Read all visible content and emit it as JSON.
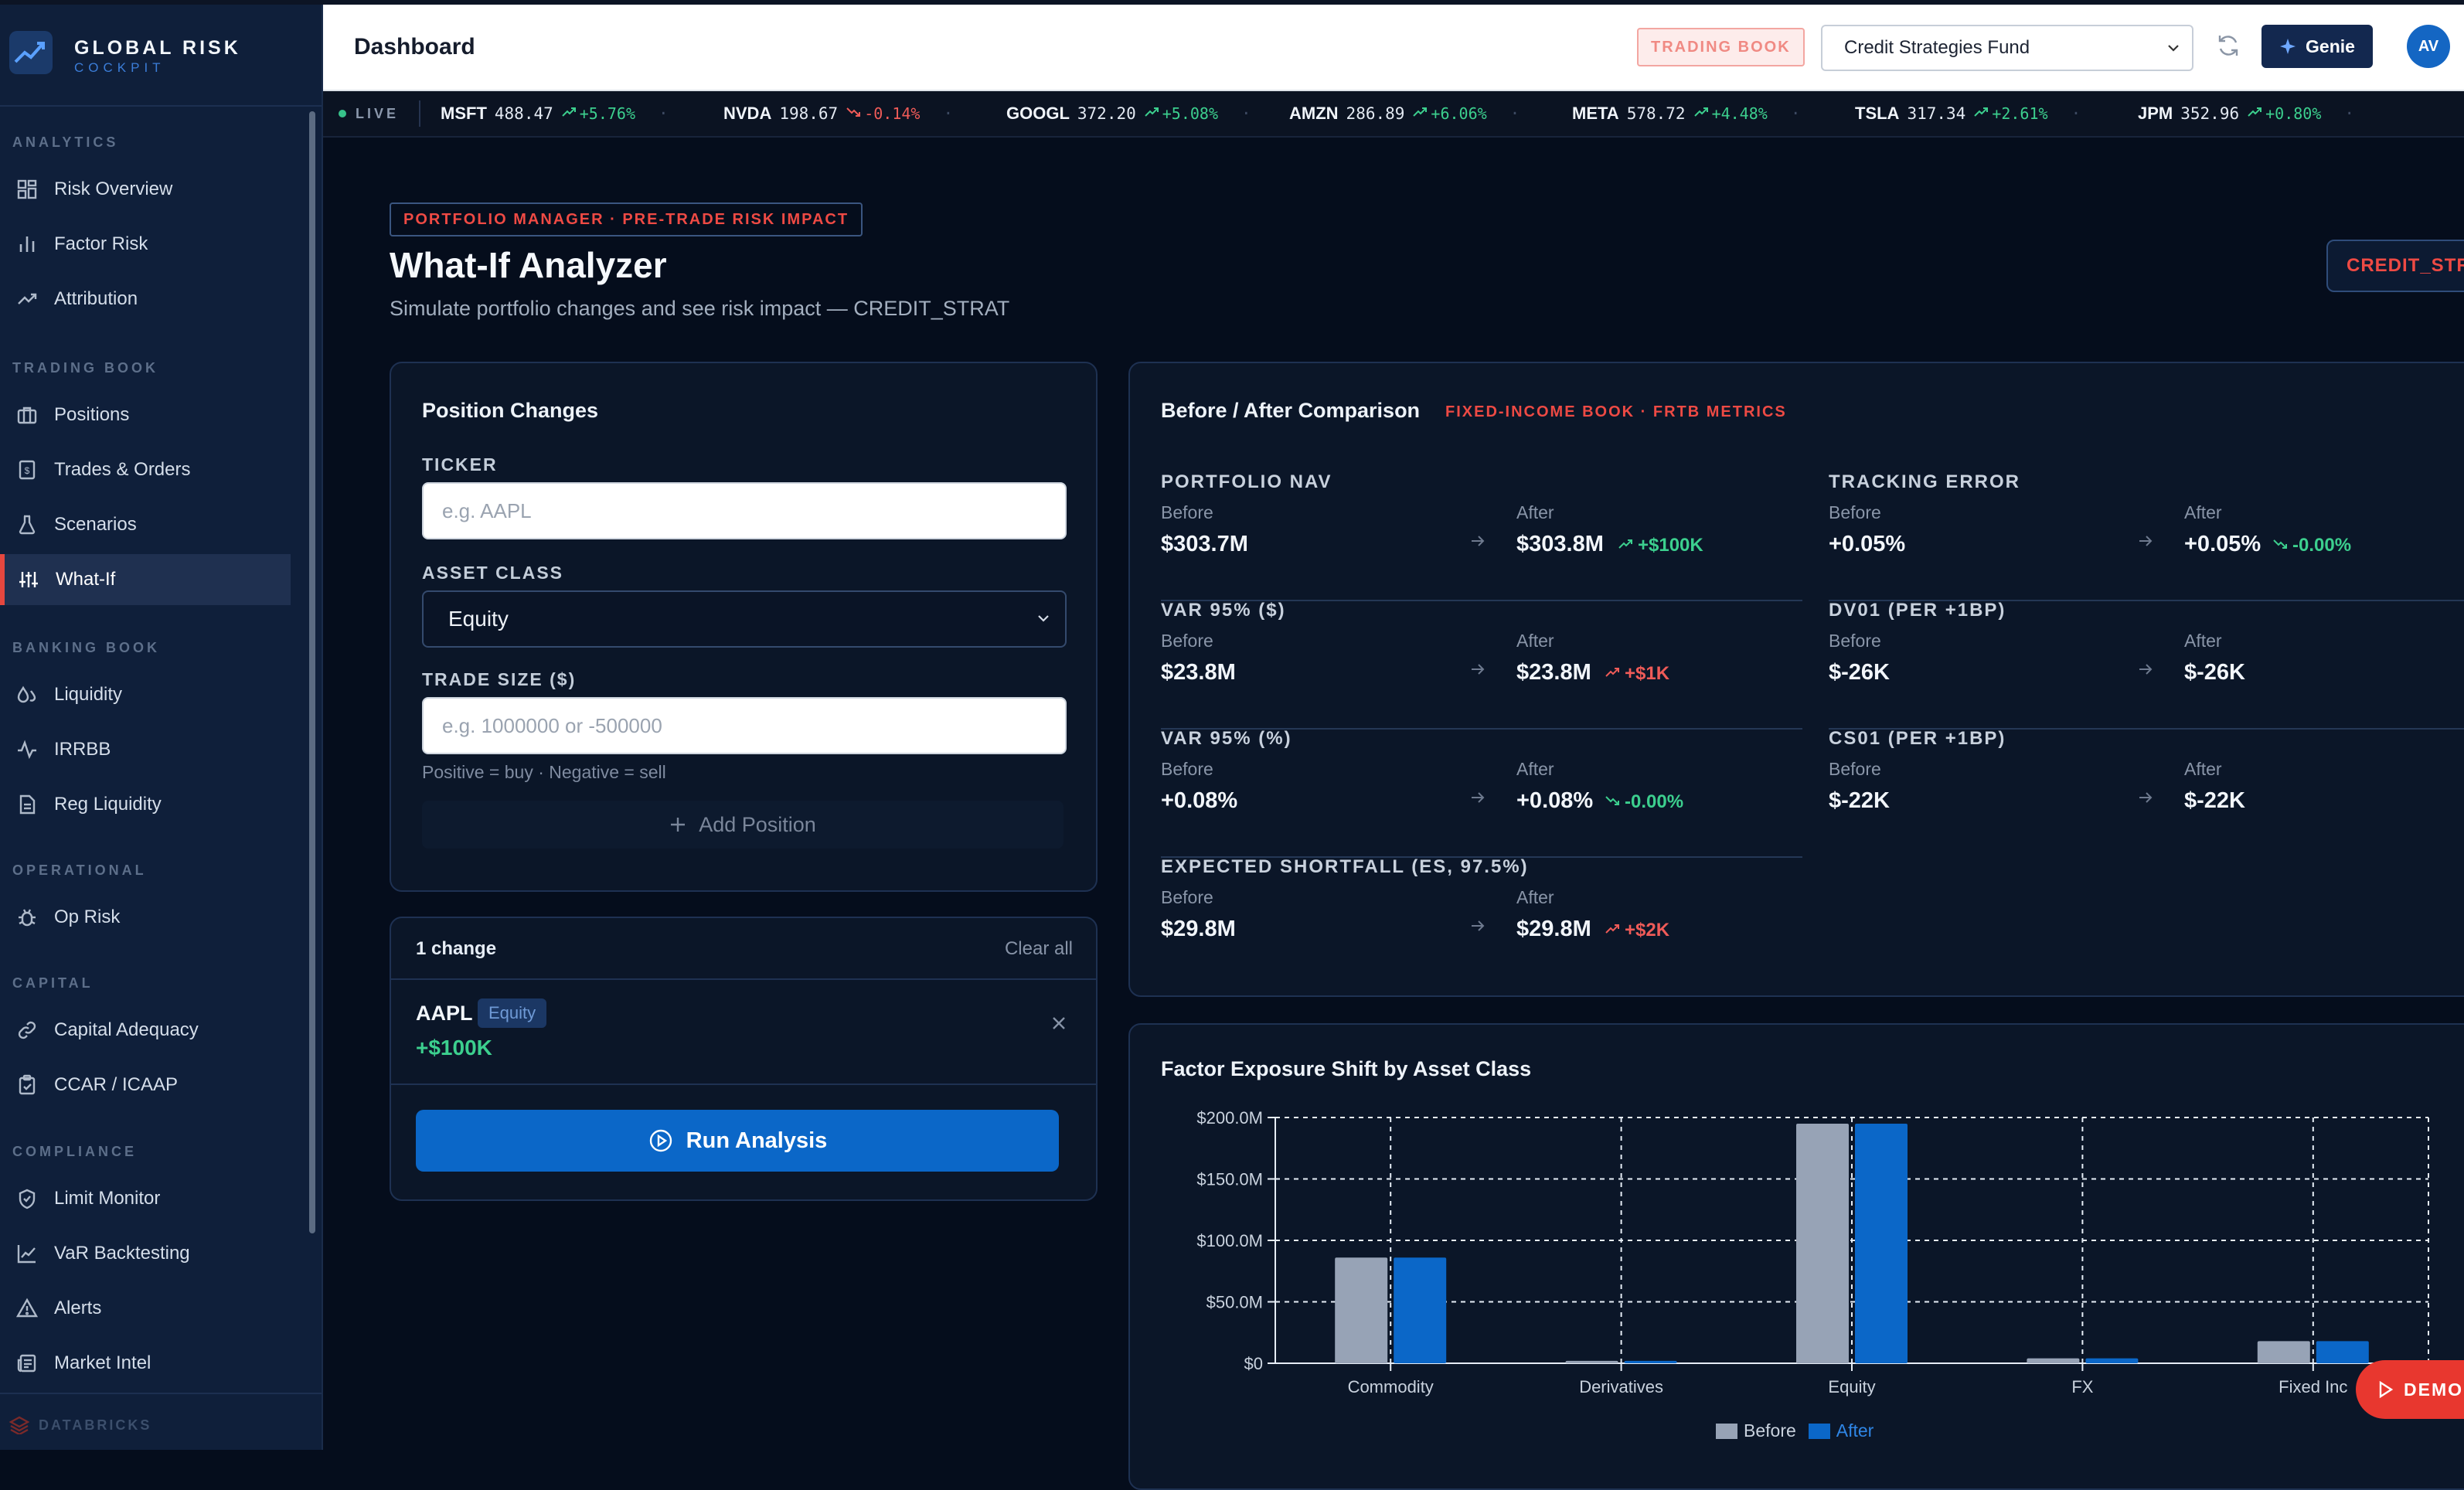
{
  "brand": {
    "title": "GLOBAL RISK",
    "subtitle": "COCKPIT"
  },
  "sidebar": {
    "sections": [
      {
        "label": "ANALYTICS",
        "items": [
          {
            "label": "Risk Overview",
            "icon": "grid-icon"
          },
          {
            "label": "Factor Risk",
            "icon": "bar-chart-icon"
          },
          {
            "label": "Attribution",
            "icon": "trend-up-icon"
          }
        ]
      },
      {
        "label": "TRADING BOOK",
        "items": [
          {
            "label": "Positions",
            "icon": "briefcase-icon"
          },
          {
            "label": "Trades & Orders",
            "icon": "receipt-icon"
          },
          {
            "label": "Scenarios",
            "icon": "flask-icon"
          },
          {
            "label": "What-If",
            "icon": "sliders-icon",
            "active": true
          }
        ]
      },
      {
        "label": "BANKING BOOK",
        "items": [
          {
            "label": "Liquidity",
            "icon": "droplets-icon"
          },
          {
            "label": "IRRBB",
            "icon": "activity-icon"
          },
          {
            "label": "Reg Liquidity",
            "icon": "file-text-icon"
          }
        ]
      },
      {
        "label": "OPERATIONAL",
        "items": [
          {
            "label": "Op Risk",
            "icon": "bug-icon"
          }
        ]
      },
      {
        "label": "CAPITAL",
        "items": [
          {
            "label": "Capital Adequacy",
            "icon": "link-icon"
          },
          {
            "label": "CCAR / ICAAP",
            "icon": "clipboard-icon"
          }
        ]
      },
      {
        "label": "COMPLIANCE",
        "items": [
          {
            "label": "Limit Monitor",
            "icon": "shield-icon"
          },
          {
            "label": "VaR Backtesting",
            "icon": "line-chart-icon"
          },
          {
            "label": "Alerts",
            "icon": "alert-triangle-icon"
          },
          {
            "label": "Market Intel",
            "icon": "newspaper-icon"
          }
        ]
      }
    ],
    "footer": "DATABRICKS"
  },
  "header": {
    "title": "Dashboard",
    "book_badge": "TRADING BOOK",
    "fund_selected": "Credit Strategies Fund",
    "genie_label": "Genie",
    "avatar_initials": "AV"
  },
  "ticker": {
    "live_label": "LIVE",
    "items": [
      {
        "symbol": "MSFT",
        "price": "488.47",
        "change": "+5.76%",
        "dir": "up"
      },
      {
        "symbol": "NVDA",
        "price": "198.67",
        "change": "-0.14%",
        "dir": "down"
      },
      {
        "symbol": "GOOGL",
        "price": "372.20",
        "change": "+5.08%",
        "dir": "up"
      },
      {
        "symbol": "AMZN",
        "price": "286.89",
        "change": "+6.06%",
        "dir": "up"
      },
      {
        "symbol": "META",
        "price": "578.72",
        "change": "+4.48%",
        "dir": "up"
      },
      {
        "symbol": "TSLA",
        "price": "317.34",
        "change": "+2.61%",
        "dir": "up"
      },
      {
        "symbol": "JPM",
        "price": "352.96",
        "change": "+0.80%",
        "dir": "up"
      }
    ]
  },
  "page": {
    "badge": "PORTFOLIO MANAGER · PRE-TRADE RISK IMPACT",
    "title": "What-If Analyzer",
    "subtitle": "Simulate portfolio changes and see risk impact — CREDIT_STRAT",
    "strategy_pill": "CREDIT_STR"
  },
  "position_changes": {
    "title": "Position Changes",
    "ticker_label": "TICKER",
    "ticker_placeholder": "e.g. AAPL",
    "asset_class_label": "ASSET CLASS",
    "asset_class_selected": "Equity",
    "trade_size_label": "TRADE SIZE ($)",
    "trade_size_placeholder": "e.g. 1000000 or -500000",
    "hint": "Positive = buy · Negative = sell",
    "add_label": "Add Position"
  },
  "changes": {
    "count_label": "1 change",
    "clear_label": "Clear all",
    "items": [
      {
        "ticker": "AAPL",
        "asset_class": "Equity",
        "amount": "+$100K"
      }
    ],
    "run_label": "Run Analysis"
  },
  "comparison": {
    "title": "Before / After Comparison",
    "subtitle": "FIXED-INCOME BOOK · FRTB METRICS",
    "before_label": "Before",
    "after_label": "After",
    "metrics": [
      {
        "label": "PORTFOLIO NAV",
        "before": "$303.7M",
        "after": "$303.8M",
        "delta": "+$100K",
        "delta_dir": "up",
        "delta_color": "#3ccf8e"
      },
      {
        "label": "TRACKING ERROR",
        "before": "+0.05%",
        "after": "+0.05%",
        "delta": "-0.00%",
        "delta_dir": "down",
        "delta_color": "#3ccf8e"
      },
      {
        "label": "VAR 95% ($)",
        "before": "$23.8M",
        "after": "$23.8M",
        "delta": "+$1K",
        "delta_dir": "up",
        "delta_color": "#ef5b58"
      },
      {
        "label": "DV01 (PER +1BP)",
        "before": "$-26K",
        "after": "$-26K",
        "delta": "",
        "delta_dir": "",
        "delta_color": ""
      },
      {
        "label": "VAR 95% (%)",
        "before": "+0.08%",
        "after": "+0.08%",
        "delta": "-0.00%",
        "delta_dir": "down",
        "delta_color": "#3ccf8e"
      },
      {
        "label": "CS01 (PER +1BP)",
        "before": "$-22K",
        "after": "$-22K",
        "delta": "",
        "delta_dir": "",
        "delta_color": ""
      },
      {
        "label": "EXPECTED SHORTFALL (ES, 97.5%)",
        "before": "$29.8M",
        "after": "$29.8M",
        "delta": "+$2K",
        "delta_dir": "up",
        "delta_color": "#ef5b58"
      }
    ]
  },
  "factor_chart": {
    "title": "Factor Exposure Shift by Asset Class"
  },
  "chart_data": {
    "type": "bar",
    "title": "Factor Exposure Shift by Asset Class",
    "categories": [
      "Commodity",
      "Derivatives",
      "Equity",
      "FX",
      "Fixed Inc"
    ],
    "series": [
      {
        "name": "Before",
        "values": [
          86,
          2,
          195,
          4,
          18
        ],
        "color": "#97a3b6"
      },
      {
        "name": "After",
        "values": [
          86,
          2,
          195,
          4,
          18
        ],
        "color": "#0b67c8"
      }
    ],
    "value_unit": "$M",
    "ylim": [
      0,
      200
    ],
    "yticks": [
      "$0",
      "$50.0M",
      "$100.0M",
      "$150.0M",
      "$200.0M"
    ],
    "grid": true,
    "legend": "bottom"
  },
  "demo_label": "DEMO",
  "colors": {
    "accent_red": "#e5473f",
    "primary_blue": "#0b67c8",
    "up": "#3ccf8e",
    "down": "#ef5b58"
  }
}
